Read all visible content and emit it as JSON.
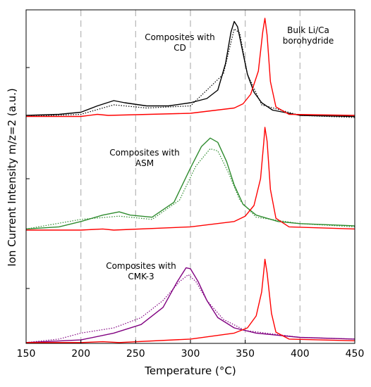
{
  "chart_data": {
    "type": "line",
    "xlabel": "Temperature (°C)",
    "ylabel": "Ion Current Intensity m/z=2 (a.u.)",
    "xlim": [
      150,
      450
    ],
    "x_ticks": [
      "150",
      "200",
      "250",
      "300",
      "350",
      "400",
      "450"
    ],
    "gridlines_x": [
      200,
      250,
      300,
      350,
      400
    ],
    "grid": "vertical dashed",
    "panels": [
      {
        "annotation_lines": [
          "Composites with",
          "CD"
        ],
        "series": [
          {
            "style": "solid",
            "color": "#000000",
            "points": [
              [
                150,
                0.06
              ],
              [
                180,
                0.07
              ],
              [
                200,
                0.09
              ],
              [
                215,
                0.15
              ],
              [
                230,
                0.2
              ],
              [
                240,
                0.18
              ],
              [
                260,
                0.15
              ],
              [
                280,
                0.15
              ],
              [
                300,
                0.18
              ],
              [
                315,
                0.22
              ],
              [
                325,
                0.3
              ],
              [
                332,
                0.55
              ],
              [
                337,
                0.85
              ],
              [
                340,
                0.95
              ],
              [
                343,
                0.9
              ],
              [
                347,
                0.7
              ],
              [
                352,
                0.45
              ],
              [
                358,
                0.28
              ],
              [
                365,
                0.18
              ],
              [
                375,
                0.11
              ],
              [
                400,
                0.06
              ],
              [
                450,
                0.05
              ]
            ]
          },
          {
            "style": "dotted",
            "color": "#000000",
            "points": [
              [
                150,
                0.05
              ],
              [
                200,
                0.07
              ],
              [
                230,
                0.16
              ],
              [
                260,
                0.13
              ],
              [
                300,
                0.15
              ],
              [
                330,
                0.45
              ],
              [
                340,
                0.88
              ],
              [
                345,
                0.84
              ],
              [
                352,
                0.45
              ],
              [
                365,
                0.16
              ],
              [
                400,
                0.06
              ],
              [
                450,
                0.04
              ]
            ]
          },
          {
            "style": "solid",
            "color": "#ff0000",
            "points": [
              [
                150,
                0.05
              ],
              [
                200,
                0.05
              ],
              [
                215,
                0.07
              ],
              [
                225,
                0.06
              ],
              [
                300,
                0.08
              ],
              [
                340,
                0.13
              ],
              [
                348,
                0.17
              ],
              [
                355,
                0.26
              ],
              [
                362,
                0.48
              ],
              [
                366,
                0.85
              ],
              [
                368,
                0.98
              ],
              [
                370,
                0.82
              ],
              [
                373,
                0.38
              ],
              [
                378,
                0.14
              ],
              [
                390,
                0.07
              ],
              [
                450,
                0.06
              ]
            ]
          }
        ]
      },
      {
        "annotation_lines": [
          "Composites with",
          "ASM"
        ],
        "series": [
          {
            "style": "solid",
            "color": "#2e8b2e",
            "points": [
              [
                150,
                0.03
              ],
              [
                180,
                0.05
              ],
              [
                200,
                0.1
              ],
              [
                220,
                0.16
              ],
              [
                235,
                0.19
              ],
              [
                245,
                0.16
              ],
              [
                265,
                0.14
              ],
              [
                285,
                0.28
              ],
              [
                300,
                0.6
              ],
              [
                310,
                0.8
              ],
              [
                318,
                0.88
              ],
              [
                325,
                0.84
              ],
              [
                333,
                0.66
              ],
              [
                340,
                0.44
              ],
              [
                348,
                0.26
              ],
              [
                360,
                0.16
              ],
              [
                380,
                0.1
              ],
              [
                400,
                0.08
              ],
              [
                450,
                0.06
              ]
            ]
          },
          {
            "style": "dotted",
            "color": "#2e8b2e",
            "points": [
              [
                150,
                0.03
              ],
              [
                200,
                0.12
              ],
              [
                235,
                0.15
              ],
              [
                265,
                0.12
              ],
              [
                290,
                0.3
              ],
              [
                305,
                0.62
              ],
              [
                318,
                0.78
              ],
              [
                325,
                0.76
              ],
              [
                335,
                0.55
              ],
              [
                345,
                0.3
              ],
              [
                360,
                0.14
              ],
              [
                400,
                0.08
              ],
              [
                450,
                0.05
              ]
            ]
          },
          {
            "style": "solid",
            "color": "#ff0000",
            "points": [
              [
                150,
                0.02
              ],
              [
                200,
                0.02
              ],
              [
                220,
                0.03
              ],
              [
                230,
                0.02
              ],
              [
                300,
                0.05
              ],
              [
                340,
                0.1
              ],
              [
                350,
                0.15
              ],
              [
                358,
                0.25
              ],
              [
                364,
                0.5
              ],
              [
                367,
                0.85
              ],
              [
                368,
                0.98
              ],
              [
                370,
                0.85
              ],
              [
                373,
                0.4
              ],
              [
                378,
                0.13
              ],
              [
                390,
                0.05
              ],
              [
                450,
                0.03
              ]
            ]
          }
        ]
      },
      {
        "annotation_lines": [
          "Composites with",
          "CMK-3"
        ],
        "series": [
          {
            "style": "solid",
            "color": "#800080",
            "points": [
              [
                150,
                0.01
              ],
              [
                200,
                0.04
              ],
              [
                230,
                0.12
              ],
              [
                255,
                0.22
              ],
              [
                275,
                0.42
              ],
              [
                288,
                0.72
              ],
              [
                296,
                0.88
              ],
              [
                300,
                0.87
              ],
              [
                307,
                0.72
              ],
              [
                315,
                0.5
              ],
              [
                325,
                0.3
              ],
              [
                340,
                0.18
              ],
              [
                360,
                0.12
              ],
              [
                400,
                0.07
              ],
              [
                450,
                0.05
              ]
            ]
          },
          {
            "style": "dotted",
            "color": "#800080",
            "points": [
              [
                150,
                0.01
              ],
              [
                180,
                0.05
              ],
              [
                200,
                0.12
              ],
              [
                230,
                0.18
              ],
              [
                255,
                0.3
              ],
              [
                275,
                0.5
              ],
              [
                290,
                0.72
              ],
              [
                298,
                0.8
              ],
              [
                305,
                0.72
              ],
              [
                315,
                0.5
              ],
              [
                330,
                0.28
              ],
              [
                350,
                0.15
              ],
              [
                400,
                0.07
              ],
              [
                450,
                0.05
              ]
            ]
          },
          {
            "style": "solid",
            "color": "#ff0000",
            "points": [
              [
                150,
                0.01
              ],
              [
                200,
                0.01
              ],
              [
                220,
                0.02
              ],
              [
                235,
                0.01
              ],
              [
                300,
                0.05
              ],
              [
                340,
                0.12
              ],
              [
                352,
                0.18
              ],
              [
                360,
                0.32
              ],
              [
                365,
                0.6
              ],
              [
                367,
                0.85
              ],
              [
                368,
                0.98
              ],
              [
                370,
                0.82
              ],
              [
                374,
                0.35
              ],
              [
                378,
                0.13
              ],
              [
                390,
                0.05
              ],
              [
                450,
                0.03
              ]
            ]
          }
        ]
      }
    ],
    "top_annotation_lines": [
      "Bulk Li/Ca",
      "borohydride"
    ]
  }
}
